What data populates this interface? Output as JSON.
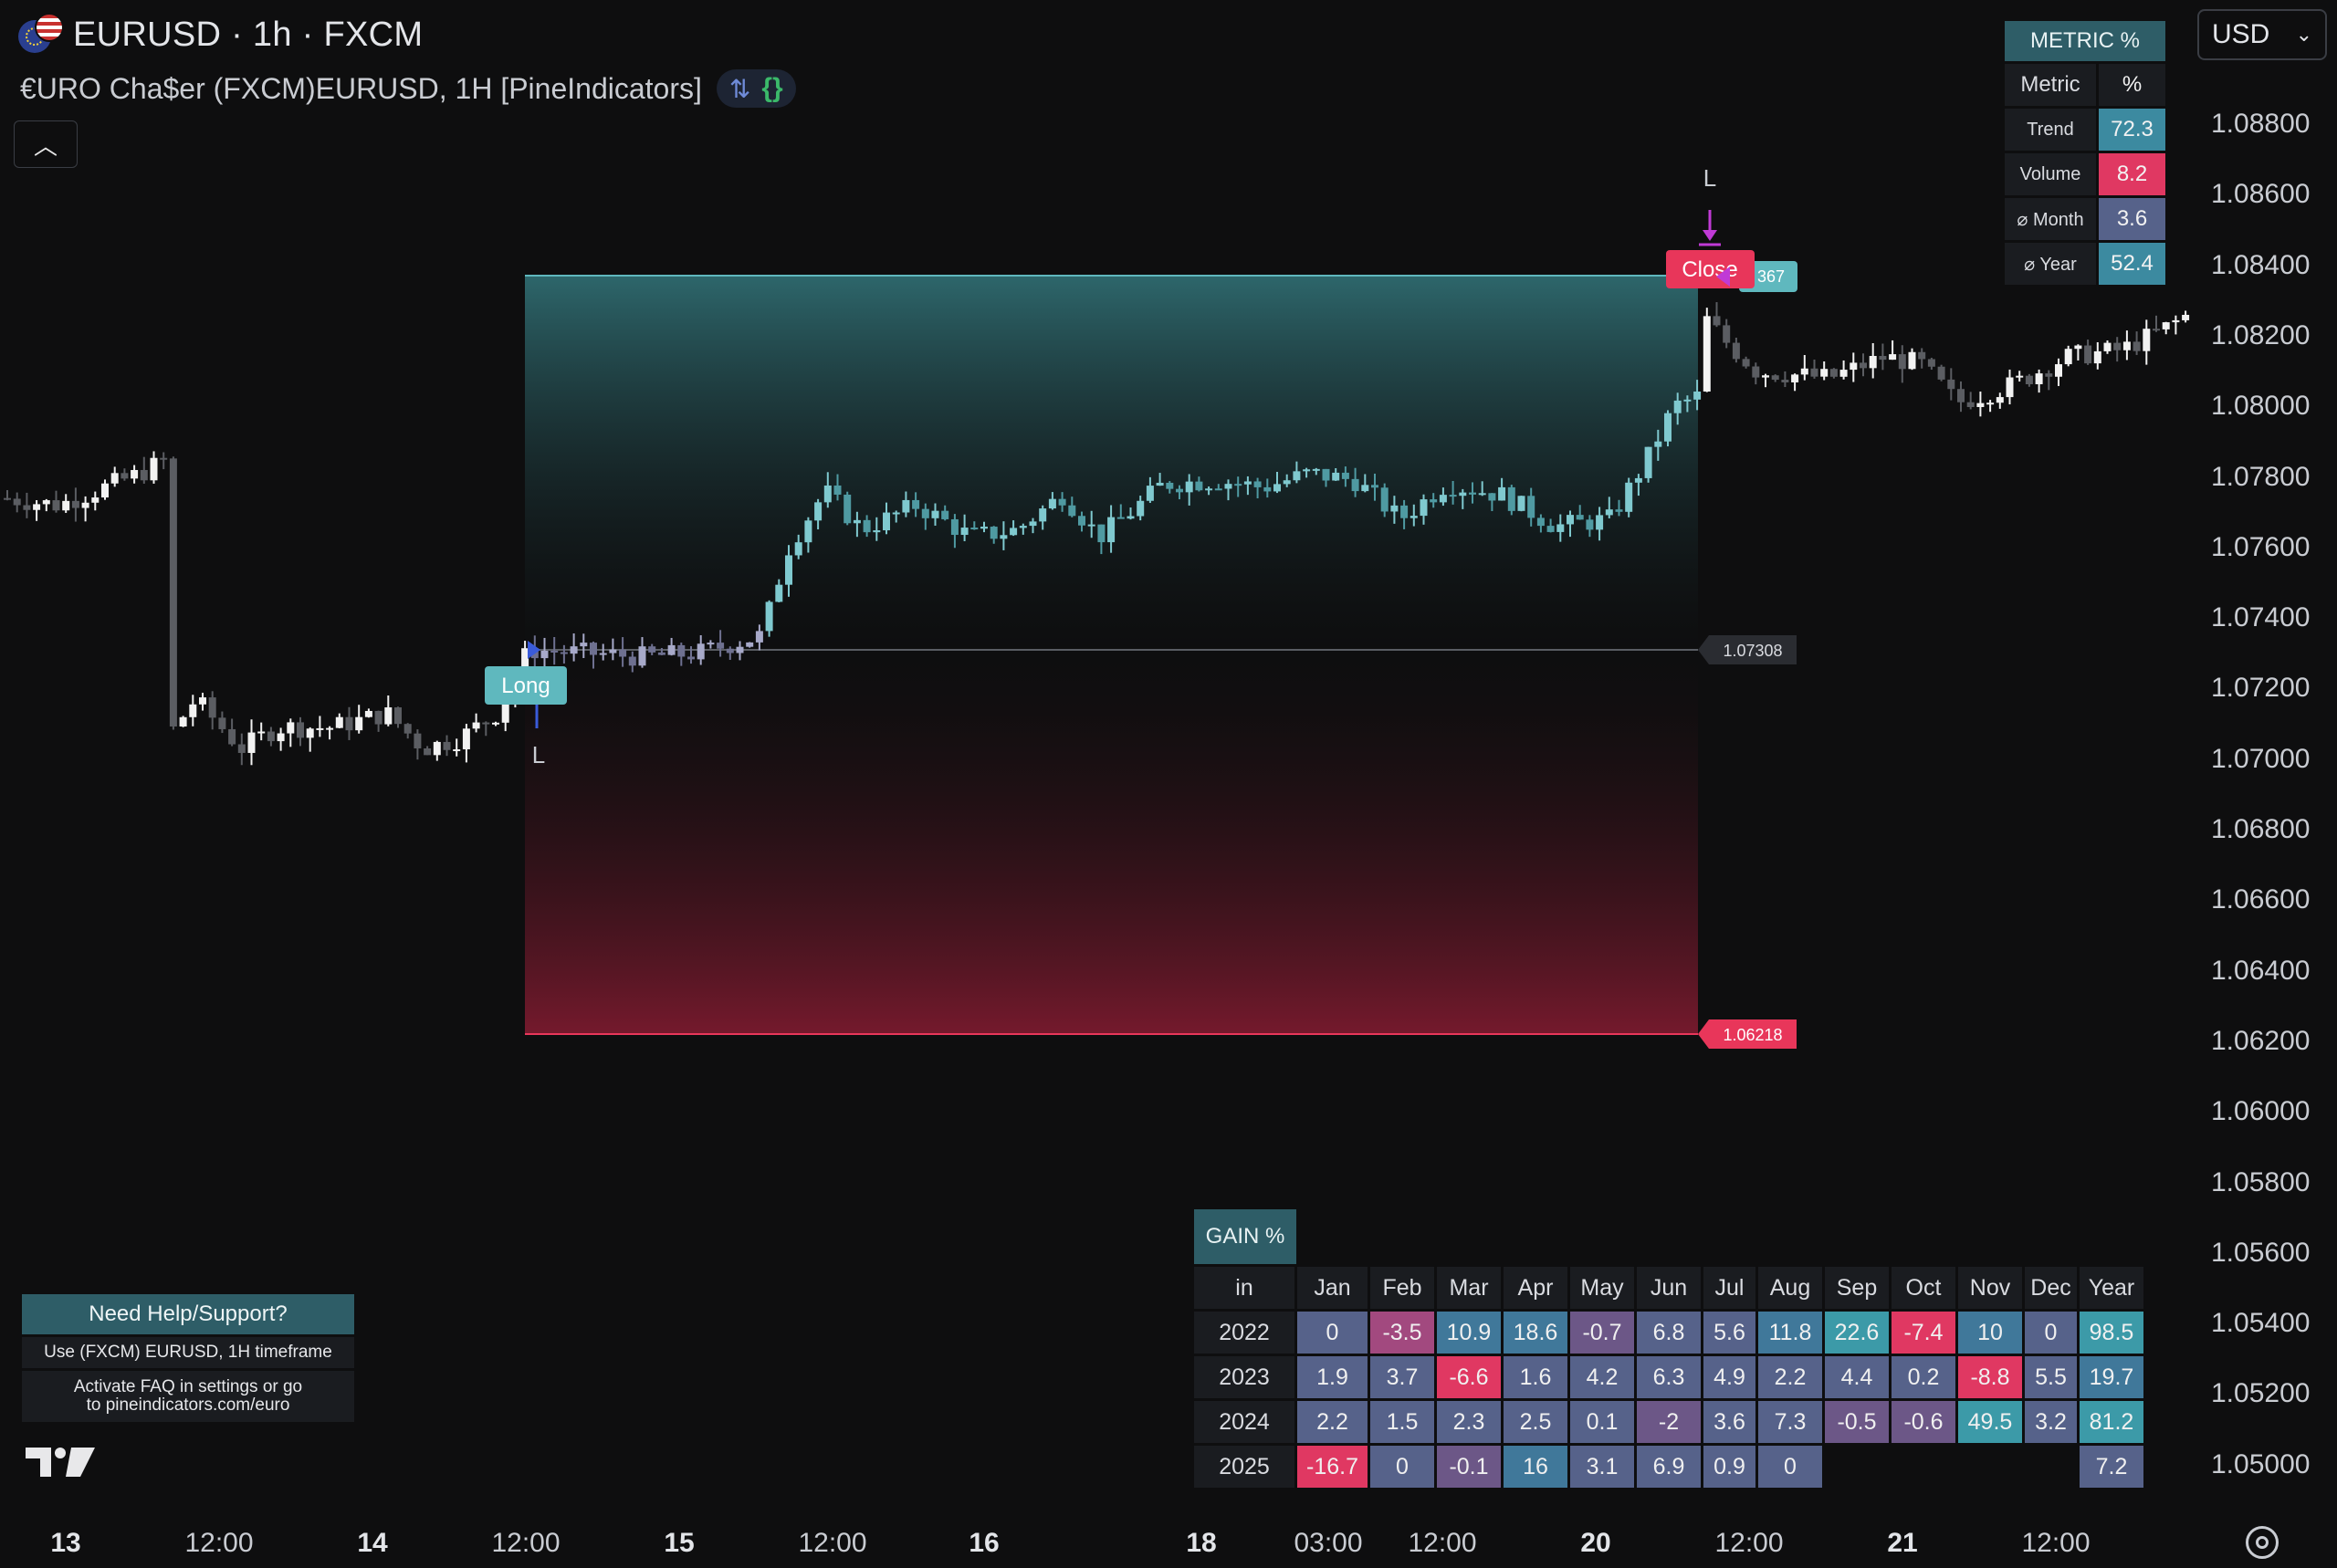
{
  "header": {
    "symbol_line": "EURUSD · 1h · FXCM",
    "indicator_line": "€URO Cha$er (FXCM)EURUSD, 1H [PineIndicators]",
    "indicator_icons": [
      "arrows-icon",
      "braces-icon"
    ],
    "collapse_icon": "chevron-up-icon",
    "currency": "USD"
  },
  "price_axis": [
    "1.08800",
    "1.08600",
    "1.08400",
    "1.08200",
    "1.08000",
    "1.07800",
    "1.07600",
    "1.07400",
    "1.07200",
    "1.07000",
    "1.06800",
    "1.06600",
    "1.06400",
    "1.06200",
    "1.06000",
    "1.05800",
    "1.05600",
    "1.05400",
    "1.05200",
    "1.05000"
  ],
  "time_axis": [
    {
      "label": "13",
      "bold": true
    },
    {
      "label": "12:00",
      "bold": false
    },
    {
      "label": "14",
      "bold": true
    },
    {
      "label": "12:00",
      "bold": false
    },
    {
      "label": "15",
      "bold": true
    },
    {
      "label": "12:00",
      "bold": false
    },
    {
      "label": "16",
      "bold": true
    },
    {
      "label": "18",
      "bold": true
    },
    {
      "label": "03:00",
      "bold": false
    },
    {
      "label": "12:00",
      "bold": false
    },
    {
      "label": "20",
      "bold": true
    },
    {
      "label": "12:00",
      "bold": false
    },
    {
      "label": "21",
      "bold": true
    },
    {
      "label": "12:00",
      "bold": false
    }
  ],
  "trade": {
    "entry_label": "Long",
    "entry_marker": "L",
    "exit_label": "Close",
    "exit_marker": "L",
    "entry_price": "1.07308",
    "stop_price": "1.06218",
    "target_price_partial": "367",
    "colors": {
      "target": "#5fb8be",
      "stop": "#e8365a",
      "entry_marker": "#3a5bd9",
      "exit_marker": "#c03ad6"
    }
  },
  "metric_table": {
    "title": "METRIC %",
    "header": [
      "Metric",
      "%"
    ],
    "rows": [
      {
        "label": "Trend",
        "value": "72.3",
        "color": "#3c8aa0"
      },
      {
        "label": "Volume",
        "value": "8.2",
        "color": "#e03862"
      },
      {
        "label": "⌀ Month",
        "value": "3.6",
        "color": "#56628a"
      },
      {
        "label": "⌀ Year",
        "value": "52.4",
        "color": "#3c8aa0"
      }
    ]
  },
  "gain_table": {
    "title": "GAIN %",
    "header": [
      "in",
      "Jan",
      "Feb",
      "Mar",
      "Apr",
      "May",
      "Jun",
      "Jul",
      "Aug",
      "Sep",
      "Oct",
      "Nov",
      "Dec",
      "Year"
    ],
    "rows": [
      {
        "year": "2022",
        "cells": [
          "0",
          "-3.5",
          "10.9",
          "18.6",
          "-0.7",
          "6.8",
          "5.6",
          "11.8",
          "22.6",
          "-7.4",
          "10",
          "0",
          "98.5"
        ]
      },
      {
        "year": "2023",
        "cells": [
          "1.9",
          "3.7",
          "-6.6",
          "1.6",
          "4.2",
          "6.3",
          "4.9",
          "2.2",
          "4.4",
          "0.2",
          "-8.8",
          "5.5",
          "19.7"
        ]
      },
      {
        "year": "2024",
        "cells": [
          "2.2",
          "1.5",
          "2.3",
          "2.5",
          "0.1",
          "-2",
          "3.6",
          "7.3",
          "-0.5",
          "-0.6",
          "49.5",
          "3.2",
          "81.2"
        ]
      },
      {
        "year": "2025",
        "cells": [
          "-16.7",
          "0",
          "-0.1",
          "16",
          "3.1",
          "6.9",
          "0.9",
          "0",
          "",
          "",
          "",
          "",
          "7.2"
        ]
      }
    ]
  },
  "help": {
    "title": "Need Help/Support?",
    "line1": "Use (FXCM) EURUSD, 1H timeframe",
    "line2a": "Activate FAQ in settings or go",
    "line2b": "to pineindicators.com/euro"
  },
  "settings_icon": "gear-icon",
  "logo": "tradingview-logo"
}
